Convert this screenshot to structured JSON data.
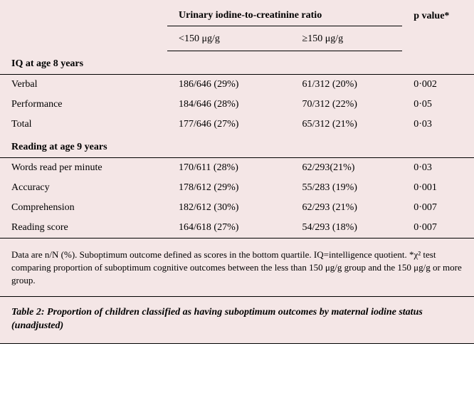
{
  "header": {
    "spanner": "Urinary iodine-to-creatinine ratio",
    "pvalue": "p value*",
    "sub1": "<150 μg/g",
    "sub2": "≥150 μg/g"
  },
  "sections": [
    {
      "title": "IQ at age 8 years",
      "rows": [
        {
          "label": "Verbal",
          "v1": "186/646 (29%)",
          "v2": "61/312 (20%)",
          "p": "0·002"
        },
        {
          "label": "Performance",
          "v1": "184/646 (28%)",
          "v2": "70/312 (22%)",
          "p": "0·05"
        },
        {
          "label": "Total",
          "v1": "177/646 (27%)",
          "v2": "65/312 (21%)",
          "p": "0·03"
        }
      ]
    },
    {
      "title": "Reading at age 9 years",
      "rows": [
        {
          "label": "Words read per minute",
          "v1": "170/611 (28%)",
          "v2": "62/293(21%)",
          "p": "0·03"
        },
        {
          "label": "Accuracy",
          "v1": "178/612 (29%)",
          "v2": "55/283 (19%)",
          "p": "0·001"
        },
        {
          "label": "Comprehension",
          "v1": "182/612 (30%)",
          "v2": "62/293 (21%)",
          "p": "0·007"
        },
        {
          "label": "Reading score",
          "v1": "164/618 (27%)",
          "v2": "54/293 (18%)",
          "p": "0·007"
        }
      ]
    }
  ],
  "footnote": "Data are n/N (%). Suboptimum outcome defined as scores in the bottom quartile. IQ=intelligence quotient. *χ² test comparing proportion of suboptimum cognitive outcomes between the less than 150 μg/g group and the 150 μg/g or more group.",
  "caption": "Table 2: Proportion of children classified as having suboptimum outcomes by maternal iodine status (unadjusted)",
  "style": {
    "background_color": "#f4e6e6",
    "text_color": "#000000",
    "rule_color": "#000000",
    "font_family": "Georgia, serif",
    "body_fontsize": 14,
    "footnote_fontsize": 13
  }
}
